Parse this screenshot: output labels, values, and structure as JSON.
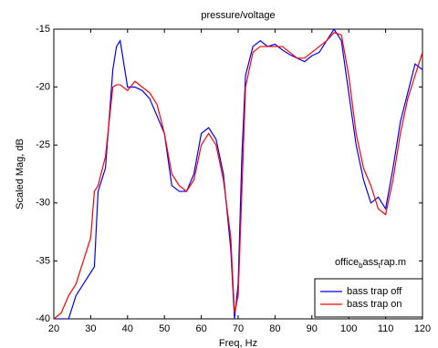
{
  "chart_data": {
    "type": "line",
    "title": "pressure/voltage",
    "xlabel": "Freq, Hz",
    "ylabel": "Scaled Mag, dB",
    "annotation": [
      "office",
      "b",
      "ass",
      "t",
      "rap.m"
    ],
    "x": [
      20,
      22,
      24,
      26,
      28,
      30,
      31,
      32,
      34,
      36,
      37,
      38,
      40,
      42,
      44,
      46,
      48,
      50,
      52,
      54,
      56,
      58,
      60,
      62,
      64,
      66,
      68,
      69,
      70,
      71,
      72,
      74,
      76,
      78,
      80,
      82,
      84,
      86,
      88,
      90,
      92,
      94,
      96,
      98,
      100,
      102,
      104,
      106,
      108,
      110,
      112,
      114,
      116,
      118,
      120
    ],
    "series": [
      {
        "name": "bass trap off",
        "color": "#0000ff",
        "values": [
          -40,
          -40,
          -40,
          -38,
          -37,
          -36,
          -35.5,
          -29,
          -27,
          -18.5,
          -16.5,
          -16,
          -20,
          -20,
          -20.3,
          -21,
          -22.5,
          -24,
          -28.5,
          -29,
          -29,
          -27.5,
          -24,
          -23.5,
          -24.5,
          -27.5,
          -34,
          -40,
          -37,
          -26,
          -19,
          -16.5,
          -16,
          -16.5,
          -16.3,
          -16.8,
          -17.2,
          -17.5,
          -17.8,
          -17.3,
          -17,
          -16,
          -15,
          -16,
          -20.5,
          -25,
          -28,
          -30,
          -29.5,
          -30.5,
          -27,
          -23,
          -20.5,
          -18,
          -18.5
        ]
      },
      {
        "name": "bass trap on",
        "color": "#ff0000",
        "values": [
          -40,
          -39.5,
          -38,
          -37,
          -35,
          -33,
          -29,
          -28.5,
          -26,
          -20,
          -19.8,
          -19.8,
          -20.3,
          -19.5,
          -20,
          -20.5,
          -21.5,
          -24,
          -27.5,
          -28.5,
          -29,
          -28,
          -25,
          -24,
          -25,
          -28,
          -33,
          -39.5,
          -38,
          -29,
          -20,
          -17,
          -16.5,
          -16.5,
          -16.5,
          -16.5,
          -17,
          -17.5,
          -17.5,
          -17,
          -16.5,
          -16,
          -15.3,
          -15.5,
          -19,
          -24,
          -27,
          -28.5,
          -30.5,
          -31,
          -28,
          -24,
          -21,
          -19,
          -17
        ]
      }
    ],
    "xlim": [
      20,
      120
    ],
    "xticks": [
      20,
      30,
      40,
      50,
      60,
      70,
      80,
      90,
      100,
      110,
      120
    ],
    "ylim": [
      -40,
      -15
    ],
    "yticks": [
      -40,
      -35,
      -30,
      -25,
      -20,
      -15
    ],
    "legend": "lower right"
  }
}
